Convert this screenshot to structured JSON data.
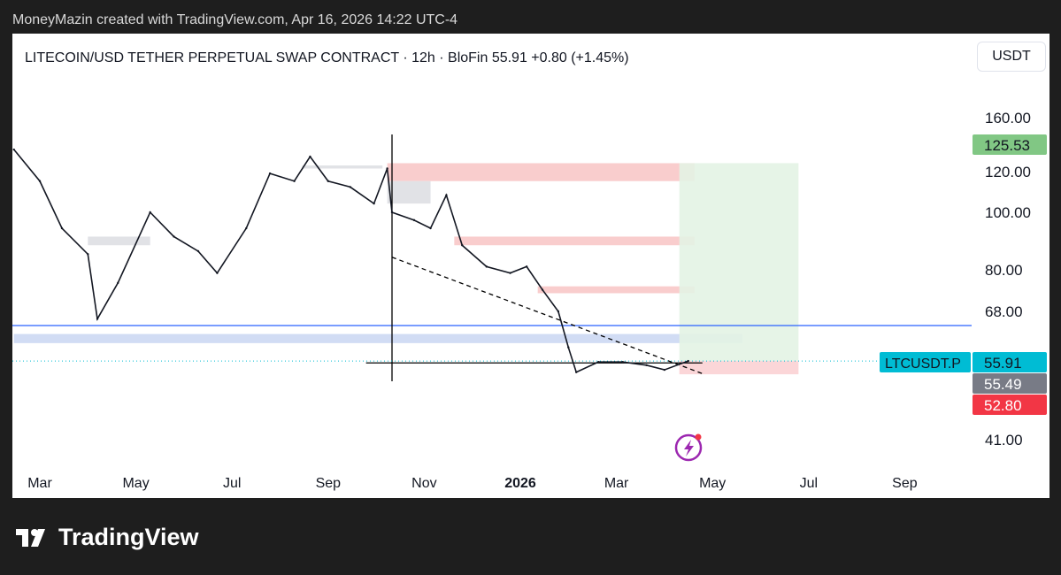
{
  "credit": "MoneyMazin created with TradingView.com, Apr 16, 2026 14:22 UTC-4",
  "header": {
    "title": "LITECOIN/USD TETHER PERPETUAL SWAP CONTRACT · 12h · BloFin  55.91  +0.80 (+1.45%)",
    "currency_button": "USDT"
  },
  "footer": {
    "brand": "TradingView"
  },
  "chart_data": {
    "type": "line",
    "scale": "log",
    "symbol": "LTCUSDT.P",
    "interval": "12h",
    "y_ticks": [
      160,
      120,
      100,
      80,
      68,
      41
    ],
    "y_tick_labels": [
      "160.00",
      "120.00",
      "100.00",
      "80.00",
      "68.00",
      "41.00"
    ],
    "x_tick_labels": [
      {
        "date": "2025-03-01",
        "label": "Mar"
      },
      {
        "date": "2025-05-01",
        "label": "May"
      },
      {
        "date": "2025-07-01",
        "label": "Jul"
      },
      {
        "date": "2025-09-01",
        "label": "Sep"
      },
      {
        "date": "2025-11-01",
        "label": "Nov"
      },
      {
        "date": "2026-01-01",
        "label": "2026"
      },
      {
        "date": "2026-03-01",
        "label": "Mar"
      },
      {
        "date": "2026-05-01",
        "label": "May"
      },
      {
        "date": "2026-07-01",
        "label": "Jul"
      },
      {
        "date": "2026-09-01",
        "label": "Sep"
      }
    ],
    "series": [
      {
        "x": [
          "2025-02-15",
          "2025-03-01",
          "2025-03-15",
          "2025-04-01",
          "2025-04-07",
          "2025-04-20",
          "2025-05-10",
          "2025-05-25",
          "2025-06-10",
          "2025-06-22",
          "2025-07-10",
          "2025-07-25",
          "2025-08-10",
          "2025-08-20",
          "2025-09-01",
          "2025-09-15",
          "2025-09-30",
          "2025-10-08",
          "2025-10-11",
          "2025-10-25",
          "2025-11-05",
          "2025-11-15",
          "2025-11-25",
          "2025-12-10",
          "2025-12-25",
          "2026-01-05",
          "2026-01-15",
          "2026-01-25",
          "2026-02-01",
          "2026-02-06",
          "2026-02-20",
          "2026-03-05",
          "2026-03-20",
          "2026-04-01",
          "2026-04-16"
        ],
        "y": [
          135,
          115,
          94,
          85,
          66,
          76,
          100,
          91,
          86,
          79,
          94,
          119,
          115,
          130,
          115,
          112,
          104,
          122,
          100,
          97,
          94,
          108,
          88,
          81,
          79,
          81,
          74,
          68,
          59,
          53.5,
          55.7,
          55.7,
          55,
          54,
          55.91
        ]
      }
    ],
    "price_labels": [
      {
        "label": "125.53",
        "color": "#81c784"
      },
      {
        "label": "55.91",
        "color": "#00bcd4",
        "tag": "LTCUSDT.P"
      },
      {
        "label": "55.49",
        "color": "#787b86"
      },
      {
        "label": "52.80",
        "color": "#f23645"
      }
    ],
    "zones": [
      {
        "kind": "supply",
        "from": "2025-10-08",
        "to": "2026-04-20",
        "top": 125.53,
        "bottom": 115,
        "color": "#f8c4c4"
      },
      {
        "kind": "supply",
        "from": "2025-11-20",
        "to": "2026-04-20",
        "top": 91,
        "bottom": 88,
        "color": "#f8c4c4"
      },
      {
        "kind": "supply",
        "from": "2026-01-12",
        "to": "2026-04-20",
        "top": 75,
        "bottom": 73,
        "color": "#f8c4c4"
      },
      {
        "kind": "range",
        "from": "2025-02-15",
        "to": "2026-05-20",
        "top": 62.2,
        "bottom": 60,
        "color": "#c9d6f2"
      },
      {
        "kind": "gray",
        "from": "2025-10-08",
        "to": "2025-11-05",
        "top": 115,
        "bottom": 104,
        "color": "#dcdde2"
      },
      {
        "kind": "gray",
        "from": "2025-04-01",
        "to": "2025-05-10",
        "top": 91,
        "bottom": 88,
        "color": "#dcdde2"
      },
      {
        "kind": "gray",
        "from": "2025-08-15",
        "to": "2025-10-05",
        "top": 124,
        "bottom": 122,
        "color": "#dcdde2"
      }
    ],
    "position": {
      "from": "2026-04-16",
      "to": "2026-06-25",
      "entry": 55.91,
      "target": 125.53,
      "stop": 52.8
    },
    "lines": [
      {
        "kind": "horizontal",
        "price": 64.3,
        "color": "#2962ff"
      },
      {
        "kind": "horizontal",
        "price": 55.49,
        "from": "2025-09-25",
        "to": "2026-04-25",
        "color": "#000000"
      },
      {
        "kind": "trend-dashed",
        "from": "2025-10-11",
        "p1": 84,
        "to": "2026-04-25",
        "p2": 53.2
      }
    ]
  }
}
